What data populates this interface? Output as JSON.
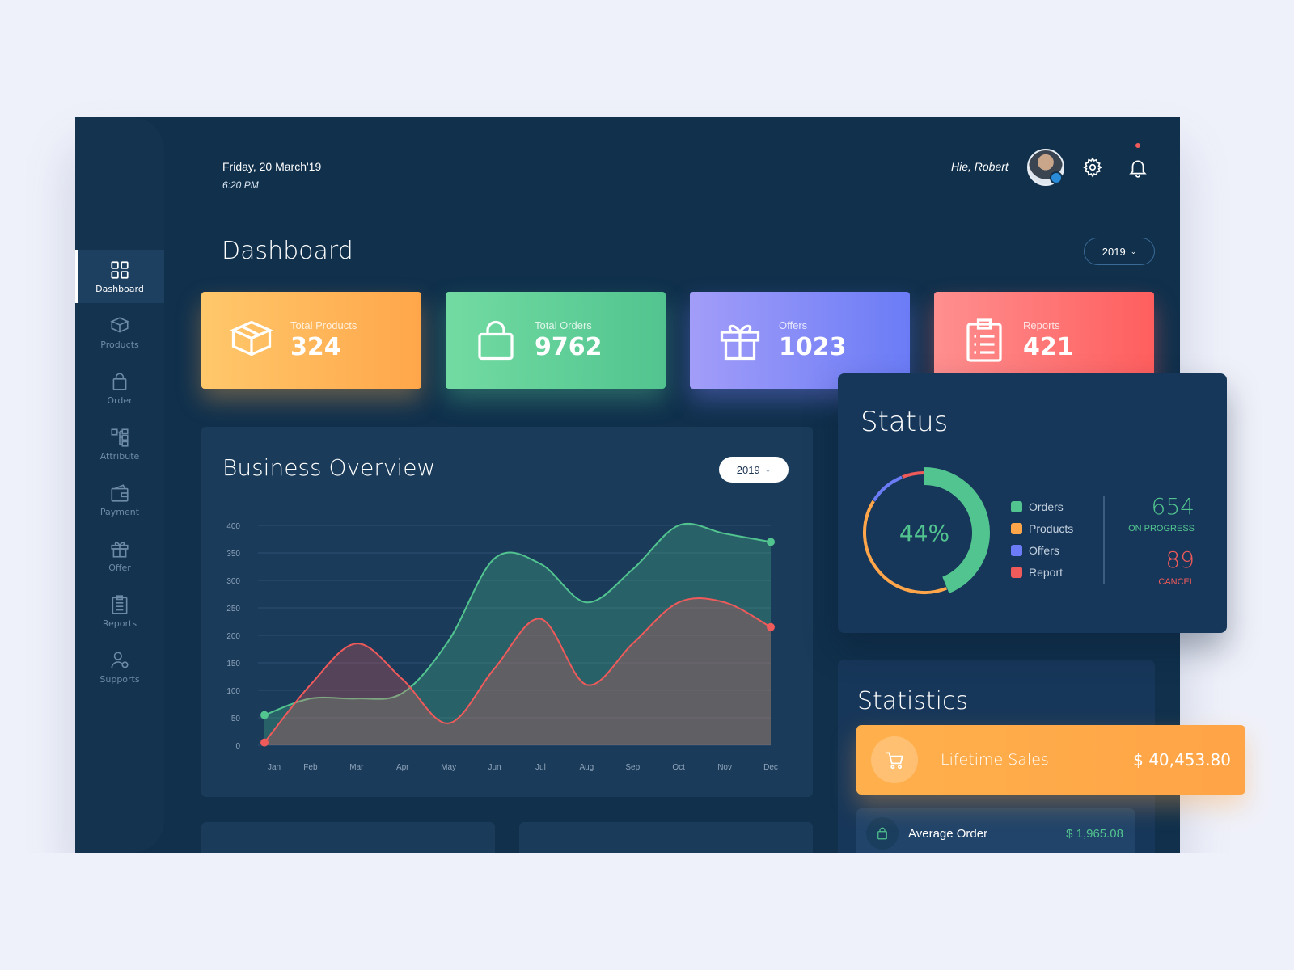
{
  "header": {
    "date": "Friday, 20 March'19",
    "time": "6:20 PM",
    "greeting": "Hie, Robert",
    "icons": [
      "settings-gear-icon",
      "notification-bell-icon"
    ]
  },
  "page": {
    "title": "Dashboard",
    "year_filter": "2019"
  },
  "sidebar": {
    "items": [
      {
        "label": "Dashboard",
        "icon": "grid-icon",
        "active": true
      },
      {
        "label": "Products",
        "icon": "box-icon"
      },
      {
        "label": "Order",
        "icon": "bag-icon"
      },
      {
        "label": "Attribute",
        "icon": "hierarchy-icon"
      },
      {
        "label": "Payment",
        "icon": "wallet-icon"
      },
      {
        "label": "Offer",
        "icon": "gift-icon"
      },
      {
        "label": "Reports",
        "icon": "clipboard-icon"
      },
      {
        "label": "Supports",
        "icon": "support-user-icon"
      }
    ]
  },
  "cards": [
    {
      "label": "Total Products",
      "value": "324",
      "icon": "box-icon"
    },
    {
      "label": "Total Orders",
      "value": "9762",
      "icon": "bag-icon"
    },
    {
      "label": "Offers",
      "value": "1023",
      "icon": "gift-icon"
    },
    {
      "label": "Reports",
      "value": "421",
      "icon": "clipboard-icon"
    }
  ],
  "overview": {
    "title": "Business Overview",
    "year_filter": "2019"
  },
  "chart_data": {
    "type": "area",
    "categories": [
      "Jan",
      "Feb",
      "Mar",
      "Apr",
      "May",
      "Jun",
      "Jul",
      "Aug",
      "Sep",
      "Oct",
      "Nov",
      "Dec"
    ],
    "y_ticks": [
      0,
      50,
      100,
      150,
      200,
      250,
      300,
      350,
      400
    ],
    "ylim": [
      0,
      400
    ],
    "grid": true,
    "series": [
      {
        "color": "#52c48f",
        "values": [
          55,
          85,
          85,
          95,
          190,
          340,
          330,
          260,
          320,
          400,
          385,
          370
        ]
      },
      {
        "color": "#ef5a5a",
        "values": [
          5,
          110,
          185,
          120,
          40,
          140,
          230,
          110,
          185,
          260,
          260,
          215
        ]
      }
    ]
  },
  "status": {
    "title": "Status",
    "percent_label": "44%",
    "donut": [
      {
        "name": "Orders",
        "value": 44,
        "color": "#52c48f"
      },
      {
        "name": "Products",
        "value": 40,
        "color": "#ffa64a"
      },
      {
        "name": "Offers",
        "value": 10,
        "color": "#6b7cf6"
      },
      {
        "name": "Report",
        "value": 6,
        "color": "#ef5a5a"
      }
    ],
    "legend": [
      {
        "name": "Orders",
        "color": "#52c48f"
      },
      {
        "name": "Products",
        "color": "#ffa64a"
      },
      {
        "name": "Offers",
        "color": "#6b7cf6"
      },
      {
        "name": "Report",
        "color": "#ef5a5a"
      }
    ],
    "in_progress": {
      "value": "654",
      "label": "ON PROGRESS"
    },
    "cancel": {
      "value": "89",
      "label": "CANCEL"
    }
  },
  "statistics": {
    "title": "Statistics",
    "lifetime": {
      "label": "Lifetime Sales",
      "value": "$ 40,453.80",
      "icon": "cart-icon"
    },
    "average": {
      "label": "Average Order",
      "value": "$ 1,965.08",
      "icon": "bag-icon"
    }
  }
}
